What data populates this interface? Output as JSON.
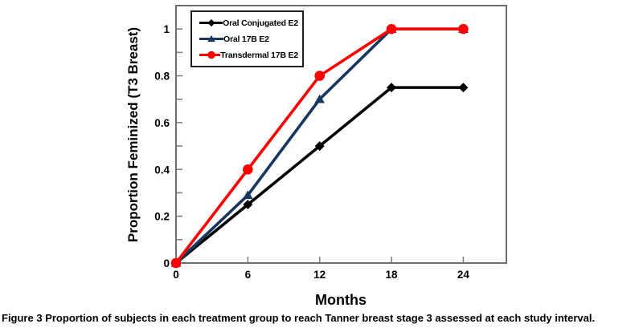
{
  "page": {
    "background": "#ffffff"
  },
  "figure": {
    "caption_label": "Figure 3",
    "caption_text": "Proportion of subjects in each treatment group to reach Tanner breast stage 3 assessed at each study interval."
  },
  "chart_data": {
    "type": "line",
    "title": "",
    "xlabel": "Months",
    "ylabel": "Proportion Feminized (T3 Breast)",
    "x": [
      0,
      6,
      12,
      18,
      24
    ],
    "series": [
      {
        "name": "Oral Conjugated E2",
        "color": "#000000",
        "marker": "diamond",
        "values": [
          0,
          0.25,
          0.5,
          0.75,
          0.75
        ]
      },
      {
        "name": "Oral 17B E2",
        "color": "#17375e",
        "marker": "triangle",
        "values": [
          0,
          0.29,
          0.7,
          1.0,
          1.0
        ]
      },
      {
        "name": "Transdermal 17B E2",
        "color": "#ff0000",
        "marker": "circle",
        "values": [
          0,
          0.4,
          0.8,
          1.0,
          1.0
        ]
      }
    ],
    "xlim": [
      0,
      27.6
    ],
    "ylim": [
      0,
      1.1
    ],
    "x_ticks": [
      {
        "value": 0,
        "label": "0"
      },
      {
        "value": 6,
        "label": "6"
      },
      {
        "value": 12,
        "label": "12"
      },
      {
        "value": 18,
        "label": "18"
      },
      {
        "value": 24,
        "label": "24"
      }
    ],
    "y_ticks": [
      {
        "value": 0,
        "label": "0"
      },
      {
        "value": 0.2,
        "label": "0.2"
      },
      {
        "value": 0.4,
        "label": "0.4"
      },
      {
        "value": 0.6,
        "label": "0.6"
      },
      {
        "value": 0.8,
        "label": "0.8"
      },
      {
        "value": 1.0,
        "label": "1"
      }
    ],
    "y_minor_ticks": [
      0.1,
      0.3,
      0.5,
      0.7,
      0.9
    ],
    "grid": false,
    "legend_position": "top-left-inside",
    "colors": {
      "axis": "#6e6e6e",
      "tick": "#808080",
      "legend_border": "#1f1f1f",
      "text": "#000000"
    }
  }
}
